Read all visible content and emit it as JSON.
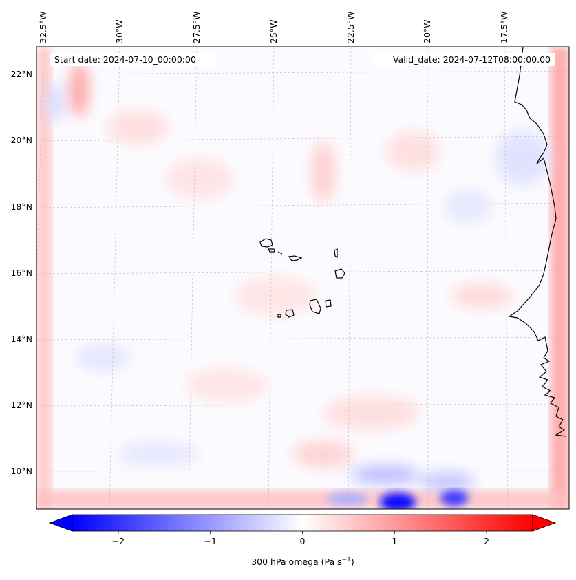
{
  "map": {
    "start_label": "Start date: 2024-07-10_00:00:00",
    "valid_label": "Valid_date: 2024-07-12T08:00:00.00",
    "lon_labels": [
      "32.5°W",
      "30°W",
      "27.5°W",
      "25°W",
      "22.5°W",
      "20°W",
      "17.5°W"
    ],
    "lat_labels": [
      "22°N",
      "20°N",
      "18°N",
      "16°N",
      "14°N",
      "12°N",
      "10°N"
    ],
    "colorbar": {
      "ticks": [
        "−2",
        "−1",
        "0",
        "1",
        "2"
      ],
      "tick_values": [
        -2,
        -1,
        0,
        1,
        2
      ],
      "range": [
        -2.5,
        2.5
      ],
      "label_main": "300 hPa omega (Pa s",
      "label_sup": "−1",
      "label_close": ")",
      "colormap": "bwr",
      "extend": "both"
    },
    "colors": {
      "negative": "#0000ff",
      "zero": "#ffffff",
      "positive": "#ff0000",
      "coastline": "#000000",
      "gridline": "#bbbbbb"
    }
  }
}
